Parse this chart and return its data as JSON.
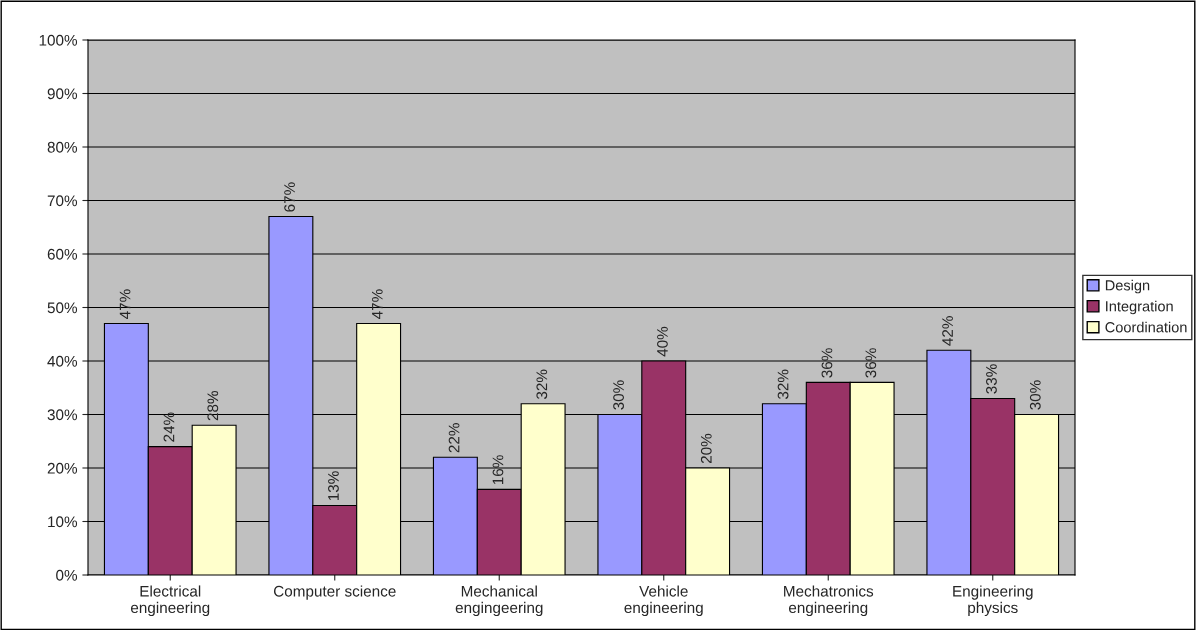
{
  "chart_data": {
    "type": "bar",
    "categories": [
      "Electrical\nengineering",
      "Computer science",
      "Mechanical\nengingeering",
      "Vehicle\nengineering",
      "Mechatronics\nengineering",
      "Engineering\nphysics"
    ],
    "series": [
      {
        "name": "Design",
        "color": "#9999ff",
        "values": [
          47,
          67,
          22,
          30,
          32,
          42
        ],
        "value_labels": [
          "47%",
          "67%",
          "22%",
          "30%",
          "32%",
          "42%"
        ]
      },
      {
        "name": "Integration",
        "color": "#993366",
        "values": [
          24,
          13,
          16,
          40,
          36,
          33
        ],
        "value_labels": [
          "24%",
          "13%",
          "16%",
          "40%",
          "36%",
          "33%"
        ]
      },
      {
        "name": "Coordination",
        "color": "#ffffcc",
        "values": [
          28,
          47,
          32,
          20,
          36,
          30
        ],
        "value_labels": [
          "28%",
          "47%",
          "32%",
          "20%",
          "36%",
          "30%"
        ]
      }
    ],
    "ylim": [
      0,
      100
    ],
    "yticks": [
      {
        "value": 0,
        "label": "0%"
      },
      {
        "value": 10,
        "label": "10%"
      },
      {
        "value": 20,
        "label": "20%"
      },
      {
        "value": 30,
        "label": "30%"
      },
      {
        "value": 40,
        "label": "40%"
      },
      {
        "value": 50,
        "label": "50%"
      },
      {
        "value": 60,
        "label": "60%"
      },
      {
        "value": 70,
        "label": "70%"
      },
      {
        "value": 80,
        "label": "80%"
      },
      {
        "value": 90,
        "label": "90%"
      },
      {
        "value": 100,
        "label": "100%"
      }
    ],
    "grid": "y",
    "legend": "right"
  }
}
